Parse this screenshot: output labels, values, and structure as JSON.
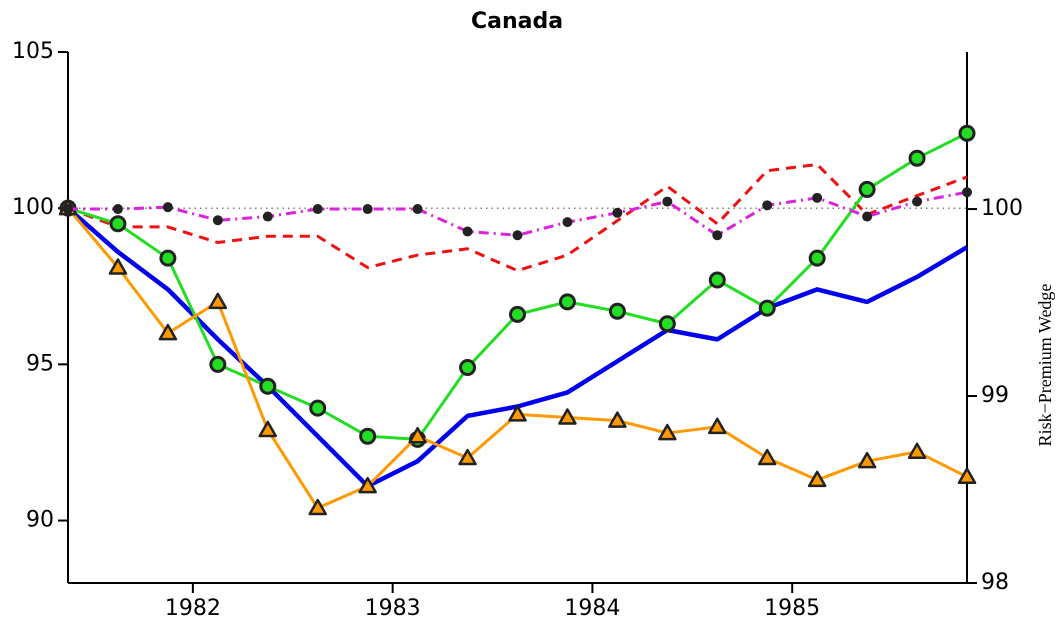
{
  "chart_data": {
    "type": "line",
    "title": "Canada",
    "y2label": "Risk−Premium Wedge",
    "x": [
      1981.375,
      1981.625,
      1981.875,
      1982.125,
      1982.375,
      1982.625,
      1982.875,
      1983.125,
      1983.375,
      1983.625,
      1983.875,
      1984.125,
      1984.375,
      1984.625,
      1984.875,
      1985.125,
      1985.375,
      1985.625,
      1985.875
    ],
    "xlim": [
      1981.375,
      1985.875
    ],
    "xticks": [
      1982,
      1983,
      1984,
      1985
    ],
    "ylim": [
      88,
      105
    ],
    "yticks": [
      90,
      95,
      100,
      105
    ],
    "y2lim": [
      98,
      100.84
    ],
    "y2ticks": [
      98,
      99,
      100
    ],
    "reference_line": 100,
    "series": [
      {
        "color": "#0000ee",
        "style": "solid",
        "values": [
          100,
          98.6,
          97.4,
          95.8,
          94.3,
          92.7,
          91.1,
          91.9,
          93.35,
          93.65,
          94.1,
          95.1,
          96.1,
          95.8,
          96.8,
          97.4,
          97.0,
          97.8,
          98.75
        ]
      },
      {
        "color": "#ee1111",
        "style": "dashed",
        "values": [
          100,
          99.4,
          99.4,
          98.9,
          99.1,
          99.1,
          98.1,
          98.5,
          98.7,
          98.0,
          98.5,
          99.6,
          100.7,
          99.5,
          101.2,
          101.4,
          99.8,
          100.4,
          101.0
        ]
      },
      {
        "color": "#22dd22",
        "style": "solid",
        "marker": "circle",
        "marker_color": "#22dd22",
        "values": [
          100,
          99.5,
          98.4,
          95.0,
          94.3,
          93.6,
          92.7,
          92.6,
          94.9,
          96.6,
          97.0,
          96.7,
          96.3,
          97.7,
          96.8,
          98.4,
          100.6,
          101.6,
          102.4
        ]
      },
      {
        "color": "#ff9900",
        "style": "solid",
        "marker": "triangle",
        "marker_color": "#ff9900",
        "values": [
          100,
          98.1,
          96.0,
          97.0,
          92.9,
          90.4,
          91.1,
          92.7,
          92.0,
          93.4,
          93.3,
          93.2,
          92.8,
          93.0,
          92.0,
          91.3,
          91.9,
          92.2,
          91.4
        ]
      },
      {
        "color": "#dd22dd",
        "style": "dashdot",
        "marker": "dot",
        "marker_color": "#222222",
        "axis": "y2",
        "values": [
          100,
          100,
          100.01,
          99.94,
          99.96,
          100,
          100,
          100,
          99.88,
          99.86,
          99.93,
          99.98,
          100.04,
          99.86,
          100.02,
          100.06,
          99.96,
          100.04,
          100.09
        ]
      }
    ]
  }
}
